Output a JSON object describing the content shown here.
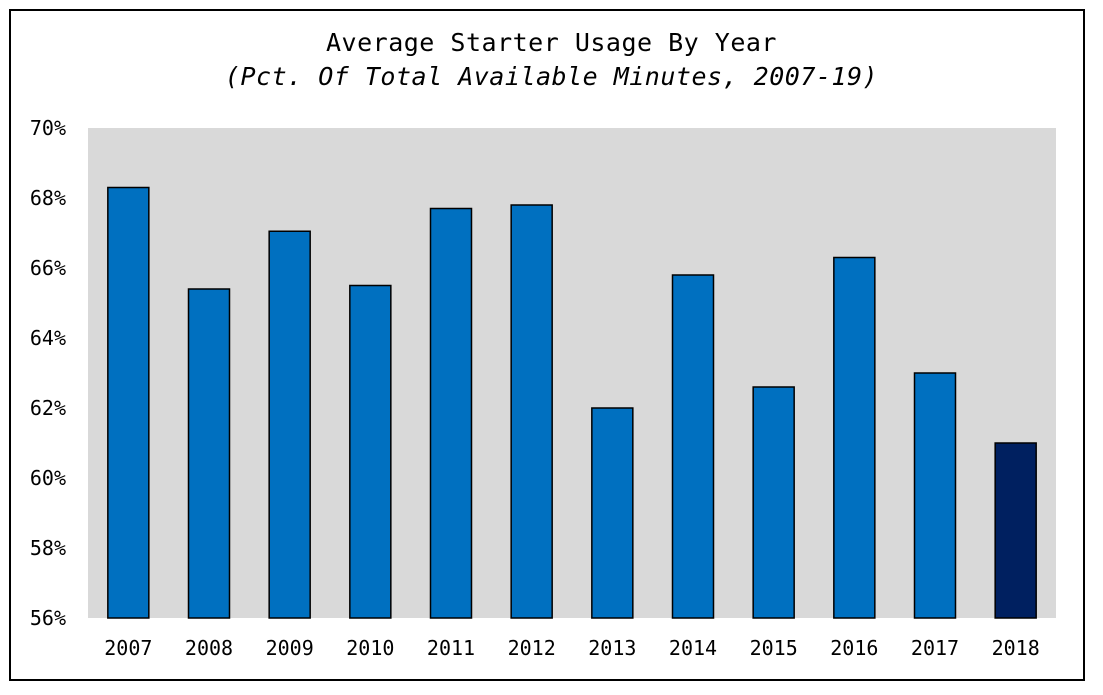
{
  "chart_data": {
    "type": "bar",
    "title": "Average Starter Usage By Year",
    "subtitle": "(Pct. Of Total Available Minutes, 2007-19)",
    "xlabel": "",
    "ylabel": "",
    "categories": [
      "2007",
      "2008",
      "2009",
      "2010",
      "2011",
      "2012",
      "2013",
      "2014",
      "2015",
      "2016",
      "2017",
      "2018"
    ],
    "values": [
      68.3,
      65.4,
      67.05,
      65.5,
      67.7,
      67.8,
      62.0,
      65.8,
      62.6,
      66.3,
      63.0,
      61.0
    ],
    "ylim": [
      56,
      70
    ],
    "yticks": [
      56,
      58,
      60,
      62,
      64,
      66,
      68,
      70
    ],
    "ytick_format": "%",
    "grid": false,
    "legend": "none",
    "colors": {
      "bar": "#0070c0",
      "highlight_bar": "#002060",
      "highlight_category": "2018",
      "plot_background": "#d9d9d9",
      "bar_outline": "#000000"
    }
  }
}
